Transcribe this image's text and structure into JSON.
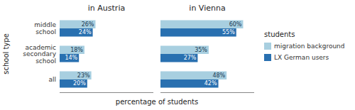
{
  "chart_data": [
    {
      "type": "bar",
      "orientation": "horizontal",
      "title": "in Austria",
      "categories": [
        "middle\nschool",
        "academic\nsecondary\nschool",
        "all"
      ],
      "series": [
        {
          "name": "migration background",
          "color": "#a8cfe0",
          "values": [
            26,
            18,
            23
          ],
          "value_labels": [
            "26%",
            "18%",
            "23%"
          ]
        },
        {
          "name": "LX German users",
          "color": "#2970b0",
          "values": [
            24,
            14,
            20
          ],
          "value_labels": [
            "24%",
            "14%",
            "20%"
          ]
        }
      ],
      "xlim": [
        0,
        68
      ],
      "xticks": [],
      "grid": false,
      "data_labels": true,
      "tick_labels": "y",
      "x_label": "percentage of students",
      "y_label": "school type",
      "legend": "right",
      "legend_title": "students"
    },
    {
      "type": "bar",
      "orientation": "horizontal",
      "title": "in Vienna",
      "categories": [
        "middle\nschool",
        "academic\nsecondary\nschool",
        "all"
      ],
      "series": [
        {
          "name": "migration background",
          "color": "#a8cfe0",
          "values": [
            60,
            35,
            48
          ],
          "value_labels": [
            "60%",
            "35%",
            "48%"
          ]
        },
        {
          "name": "LX German users",
          "color": "#2970b0",
          "values": [
            55,
            27,
            42
          ],
          "value_labels": [
            "55%",
            "27%",
            "42%"
          ]
        }
      ],
      "xlim": [
        0,
        68
      ],
      "xticks": [],
      "grid": false,
      "data_labels": true,
      "tick_labels": false
    }
  ]
}
